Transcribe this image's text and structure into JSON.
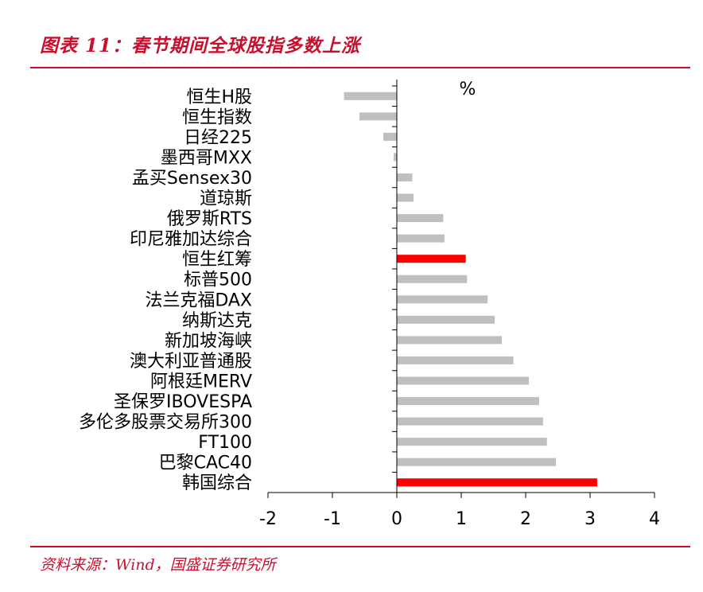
{
  "figure": {
    "title": "图表 11：春节期间全球股指多数上涨",
    "source": "资料来源：Wind，国盛证券研究所"
  },
  "colors": {
    "accent": "#c8102e",
    "bar_default": "#bfbfbf",
    "bar_highlight": "#ff0000"
  },
  "chart_data": {
    "type": "bar",
    "orientation": "horizontal",
    "unit_label": "%",
    "xlim": [
      -2,
      4
    ],
    "xticks": [
      "-2",
      "-1",
      "0",
      "1",
      "2",
      "3",
      "4"
    ],
    "grid": false,
    "legend": "none",
    "categories": [
      "恒生H股",
      "恒生指数",
      "日经225",
      "墨西哥MXX",
      "孟买Sensex30",
      "道琼斯",
      "俄罗斯RTS",
      "印尼雅加达综合",
      "恒生红筹",
      "标普500",
      "法兰克福DAX",
      "纳斯达克",
      "新加坡海峡",
      "澳大利亚普通股",
      "阿根廷MERV",
      "圣保罗IBOVESPA",
      "多伦多股票交易所300",
      "FT100",
      "巴黎CAC40",
      "韩国综合"
    ],
    "values": [
      -0.82,
      -0.58,
      -0.21,
      -0.05,
      0.24,
      0.26,
      0.72,
      0.74,
      1.07,
      1.09,
      1.41,
      1.52,
      1.63,
      1.81,
      2.05,
      2.21,
      2.27,
      2.33,
      2.47,
      3.11
    ],
    "highlighted": [
      "恒生红筹",
      "韩国综合"
    ]
  }
}
